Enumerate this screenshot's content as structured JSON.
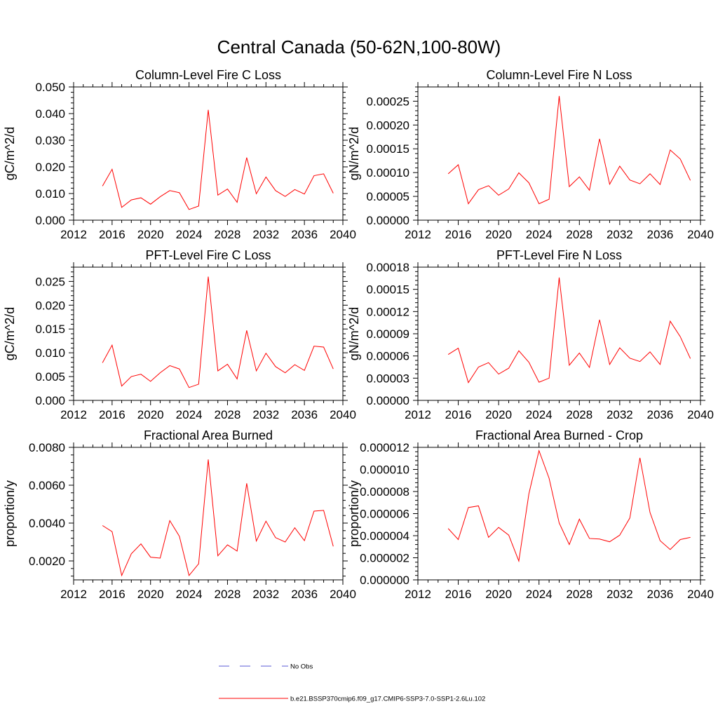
{
  "figure": {
    "title": "Central Canada (50-62N,100-80W)",
    "legend": [
      {
        "label": "No Obs",
        "style": "dashed",
        "color": "#5a5ad6"
      },
      {
        "label": "b.e21.BSSP370cmip6.f09_g17.CMIP6-SSP3-7.0-SSP1-2.6Lu.102",
        "style": "solid",
        "color": "#ff0000"
      }
    ]
  },
  "chart_data": [
    {
      "type": "line",
      "title": "Column-Level Fire C Loss",
      "ylabel": "gC/m^2/d",
      "xlim": [
        2012,
        2040
      ],
      "xticks": [
        2012,
        2016,
        2020,
        2024,
        2028,
        2032,
        2036,
        2040
      ],
      "ylim": [
        0.0,
        0.05
      ],
      "yticks": [
        "0.000",
        "0.010",
        "0.020",
        "0.030",
        "0.040",
        "0.050"
      ],
      "ytick_values": [
        0.0,
        0.01,
        0.02,
        0.03,
        0.04,
        0.05
      ],
      "x": [
        2015,
        2016,
        2017,
        2018,
        2019,
        2020,
        2021,
        2022,
        2023,
        2024,
        2025,
        2026,
        2027,
        2028,
        2029,
        2030,
        2031,
        2032,
        2033,
        2034,
        2035,
        2036,
        2037,
        2038,
        2039
      ],
      "series": [
        {
          "color": "#ff0000",
          "values": [
            0.0128,
            0.0191,
            0.0048,
            0.0076,
            0.0084,
            0.006,
            0.0088,
            0.0111,
            0.0103,
            0.004,
            0.0053,
            0.0414,
            0.0094,
            0.0117,
            0.0067,
            0.0235,
            0.0099,
            0.0162,
            0.0111,
            0.0089,
            0.0115,
            0.0098,
            0.0167,
            0.0174,
            0.0101
          ]
        }
      ]
    },
    {
      "type": "line",
      "title": "Column-Level Fire N Loss",
      "ylabel": "gN/m^2/d",
      "xlim": [
        2012,
        2040
      ],
      "xticks": [
        2012,
        2016,
        2020,
        2024,
        2028,
        2032,
        2036,
        2040
      ],
      "ylim": [
        0.0,
        0.00028
      ],
      "yticks": [
        "0.00000",
        "0.00005",
        "0.00010",
        "0.00015",
        "0.00020",
        "0.00025"
      ],
      "ytick_values": [
        0.0,
        5e-05,
        0.0001,
        0.00015,
        0.0002,
        0.00025
      ],
      "x": [
        2015,
        2016,
        2017,
        2018,
        2019,
        2020,
        2021,
        2022,
        2023,
        2024,
        2025,
        2026,
        2027,
        2028,
        2029,
        2030,
        2031,
        2032,
        2033,
        2034,
        2035,
        2036,
        2037,
        2038,
        2039
      ],
      "series": [
        {
          "color": "#ff0000",
          "values": [
            9.75e-05,
            0.0001165,
            3.45e-05,
            6.4e-05,
            7.25e-05,
            5.25e-05,
            6.55e-05,
            9.95e-05,
            7.85e-05,
            3.45e-05,
            4.4e-05,
            0.000261,
            7.05e-05,
            9.1e-05,
            6.3e-05,
            0.000171,
            7.55e-05,
            0.0001135,
            8.45e-05,
            7.65e-05,
            9.75e-05,
            7.5e-05,
            0.0001475,
            0.0001285,
            8.35e-05
          ]
        }
      ]
    },
    {
      "type": "line",
      "title": "PFT-Level Fire C Loss",
      "ylabel": "gC/m^2/d",
      "xlim": [
        2012,
        2040
      ],
      "xticks": [
        2012,
        2016,
        2020,
        2024,
        2028,
        2032,
        2036,
        2040
      ],
      "ylim": [
        0.0,
        0.028
      ],
      "yticks": [
        "0.000",
        "0.005",
        "0.010",
        "0.015",
        "0.020",
        "0.025"
      ],
      "ytick_values": [
        0.0,
        0.005,
        0.01,
        0.015,
        0.02,
        0.025
      ],
      "x": [
        2015,
        2016,
        2017,
        2018,
        2019,
        2020,
        2021,
        2022,
        2023,
        2024,
        2025,
        2026,
        2027,
        2028,
        2029,
        2030,
        2031,
        2032,
        2033,
        2034,
        2035,
        2036,
        2037,
        2038,
        2039
      ],
      "series": [
        {
          "color": "#ff0000",
          "values": [
            0.0079,
            0.0116,
            0.003,
            0.005,
            0.0055,
            0.004,
            0.0058,
            0.0073,
            0.0066,
            0.0027,
            0.0034,
            0.026,
            0.0062,
            0.0076,
            0.0045,
            0.0147,
            0.0062,
            0.0099,
            0.0071,
            0.0058,
            0.0075,
            0.0063,
            0.0114,
            0.0112,
            0.0066
          ]
        }
      ]
    },
    {
      "type": "line",
      "title": "PFT-Level Fire N Loss",
      "ylabel": "gN/m^2/d",
      "xlim": [
        2012,
        2040
      ],
      "xticks": [
        2012,
        2016,
        2020,
        2024,
        2028,
        2032,
        2036,
        2040
      ],
      "ylim": [
        0.0,
        0.00018
      ],
      "yticks": [
        "0.00000",
        "0.00003",
        "0.00006",
        "0.00009",
        "0.00012",
        "0.00015",
        "0.00018"
      ],
      "ytick_values": [
        0.0,
        3e-05,
        6e-05,
        9e-05,
        0.00012,
        0.00015,
        0.00018
      ],
      "x": [
        2015,
        2016,
        2017,
        2018,
        2019,
        2020,
        2021,
        2022,
        2023,
        2024,
        2025,
        2026,
        2027,
        2028,
        2029,
        2030,
        2031,
        2032,
        2033,
        2034,
        2035,
        2036,
        2037,
        2038,
        2039
      ],
      "series": [
        {
          "color": "#ff0000",
          "values": [
            6.2e-05,
            7.05e-05,
            2.4e-05,
            4.5e-05,
            5.1e-05,
            3.55e-05,
            4.35e-05,
            6.7e-05,
            5.15e-05,
            2.45e-05,
            3e-05,
            0.000166,
            4.75e-05,
            6.4e-05,
            4.45e-05,
            0.000109,
            4.85e-05,
            7.1e-05,
            5.7e-05,
            5.25e-05,
            6.55e-05,
            4.85e-05,
            0.000107,
            8.6e-05,
            5.65e-05
          ]
        }
      ]
    },
    {
      "type": "line",
      "title": "Fractional Area Burned",
      "ylabel": "proportion/y",
      "xlim": [
        2012,
        2040
      ],
      "xticks": [
        2012,
        2016,
        2020,
        2024,
        2028,
        2032,
        2036,
        2040
      ],
      "ylim": [
        0.001,
        0.008
      ],
      "yticks": [
        "0.0020",
        "0.0040",
        "0.0060",
        "0.0080"
      ],
      "ytick_values": [
        0.002,
        0.004,
        0.006,
        0.008
      ],
      "x": [
        2015,
        2016,
        2017,
        2018,
        2019,
        2020,
        2021,
        2022,
        2023,
        2024,
        2025,
        2026,
        2027,
        2028,
        2029,
        2030,
        2031,
        2032,
        2033,
        2034,
        2035,
        2036,
        2037,
        2038,
        2039
      ],
      "series": [
        {
          "color": "#ff0000",
          "values": [
            0.00387,
            0.00355,
            0.00123,
            0.00238,
            0.0029,
            0.0022,
            0.00215,
            0.00413,
            0.0033,
            0.00123,
            0.00185,
            0.00736,
            0.00227,
            0.00285,
            0.00252,
            0.0061,
            0.00305,
            0.0041,
            0.00323,
            0.003,
            0.00375,
            0.00307,
            0.00463,
            0.00467,
            0.00277
          ]
        }
      ]
    },
    {
      "type": "line",
      "title": "Fractional Area Burned - Crop",
      "ylabel": "proportion/y",
      "xlim": [
        2012,
        2040
      ],
      "xticks": [
        2012,
        2016,
        2020,
        2024,
        2028,
        2032,
        2036,
        2040
      ],
      "ylim": [
        0.0,
        1.2e-05
      ],
      "yticks": [
        "0.000000",
        "0.000002",
        "0.000004",
        "0.000006",
        "0.000008",
        "0.000010",
        "0.000012"
      ],
      "ytick_values": [
        0.0,
        2e-06,
        4e-06,
        6e-06,
        8e-06,
        1e-05,
        1.2e-05
      ],
      "x": [
        2015,
        2016,
        2017,
        2018,
        2019,
        2020,
        2021,
        2022,
        2023,
        2024,
        2025,
        2026,
        2027,
        2028,
        2029,
        2030,
        2031,
        2032,
        2033,
        2034,
        2035,
        2036,
        2037,
        2038,
        2039
      ],
      "series": [
        {
          "color": "#ff0000",
          "values": [
            4.65e-06,
            3.65e-06,
            6.55e-06,
            6.7e-06,
            3.85e-06,
            4.75e-06,
            4.05e-06,
            1.7e-06,
            7.8e-06,
            1.17e-05,
            9.2e-06,
            5.15e-06,
            3.2e-06,
            5.5e-06,
            3.75e-06,
            3.7e-06,
            3.45e-06,
            4.05e-06,
            5.6e-06,
            1.105e-05,
            6.1e-06,
            3.55e-06,
            2.75e-06,
            3.65e-06,
            3.85e-06
          ]
        }
      ]
    }
  ]
}
